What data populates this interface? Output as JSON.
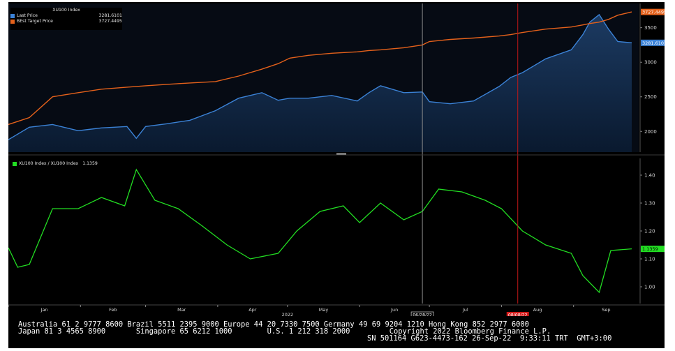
{
  "colors": {
    "background": "#000000",
    "panel_top": "#0b1626",
    "panel_bottom": "#000000",
    "last_price": "#3b82d6",
    "best_target": "#e4611b",
    "ratio": "#22dd22",
    "cursor_line": "#8a8a8a",
    "marker_line": "#c01818",
    "axis_text": "#d8d8d8"
  },
  "top_legend": {
    "title": "XU100 Index",
    "items": [
      {
        "label": "Last Price",
        "value": "3281.6101",
        "color": "#3b82d6"
      },
      {
        "label": "BEst Target Price",
        "value": "3727.4495",
        "color": "#e4611b"
      }
    ]
  },
  "bottom_legend": {
    "label": "XU100 Index / XU100 Index",
    "value": "1.1359",
    "color": "#22dd22"
  },
  "top_axis": {
    "ticks": [
      "3500",
      "3000",
      "2500",
      "2000"
    ]
  },
  "bottom_axis": {
    "ticks": [
      "1.40",
      "1.30",
      "1.20",
      "1.10",
      "1.00"
    ]
  },
  "top_badges": {
    "target": "3727.4495",
    "last": "3281.6101"
  },
  "bottom_badge": "1.1359",
  "x_axis": {
    "months": [
      "Jan",
      "Feb",
      "Mar",
      "Apr",
      "May",
      "Jun",
      "Jul",
      "Aug",
      "Sep"
    ],
    "year": "2022",
    "cursor_date": "06/28/22",
    "marker_date": "08/08/22"
  },
  "footer": {
    "line1": "Australia 61 2 9777 8600 Brazil 5511 2395 9000 Europe 44 20 7330 7500 Germany 49 69 9204 1210 Hong Kong 852 2977 6000",
    "line2": "Japan 81 3 4565 8900       Singapore 65 6212 1000        U.S. 1 212 318 2000         Copyright 2022 Bloomberg Finance L.P.",
    "line3": "SN 501164 G623-4473-162 26-Sep-22  9:33:11 TRT  GMT+3:00"
  },
  "chart_data": [
    {
      "type": "area",
      "panel": "top",
      "title": "XU100 Index",
      "ylim": [
        1700,
        3850
      ],
      "y_ticks": [
        3500,
        3000,
        2500,
        2000
      ],
      "x": [
        "2022-01-01",
        "2022-01-10",
        "2022-01-20",
        "2022-01-31",
        "2022-02-10",
        "2022-02-21",
        "2022-02-25",
        "2022-03-01",
        "2022-03-10",
        "2022-03-20",
        "2022-03-31",
        "2022-04-10",
        "2022-04-20",
        "2022-04-27",
        "2022-05-02",
        "2022-05-10",
        "2022-05-20",
        "2022-05-31",
        "2022-06-05",
        "2022-06-10",
        "2022-06-20",
        "2022-06-28",
        "2022-07-01",
        "2022-07-10",
        "2022-07-20",
        "2022-07-31",
        "2022-08-05",
        "2022-08-10",
        "2022-08-20",
        "2022-08-31",
        "2022-09-05",
        "2022-09-08",
        "2022-09-12",
        "2022-09-16",
        "2022-09-20",
        "2022-09-26"
      ],
      "series": [
        {
          "name": "Last Price",
          "values": [
            1880,
            2060,
            2100,
            2010,
            2050,
            2070,
            1900,
            2070,
            2110,
            2160,
            2300,
            2480,
            2560,
            2450,
            2480,
            2480,
            2520,
            2440,
            2560,
            2660,
            2560,
            2570,
            2430,
            2400,
            2440,
            2650,
            2780,
            2850,
            3050,
            3180,
            3400,
            3580,
            3690,
            3480,
            3300,
            3281.6
          ]
        },
        {
          "name": "BEst Target Price",
          "values": [
            2100,
            2200,
            2500,
            2560,
            2610,
            2640,
            2650,
            2660,
            2680,
            2700,
            2720,
            2800,
            2900,
            2980,
            3060,
            3100,
            3130,
            3150,
            3170,
            3180,
            3210,
            3250,
            3300,
            3330,
            3350,
            3380,
            3400,
            3430,
            3480,
            3510,
            3540,
            3560,
            3580,
            3620,
            3680,
            3727.45
          ]
        }
      ]
    },
    {
      "type": "line",
      "panel": "bottom",
      "ylim": [
        0.94,
        1.46
      ],
      "y_ticks": [
        1.4,
        1.3,
        1.2,
        1.1,
        1.0
      ],
      "x": [
        "2022-01-01",
        "2022-01-05",
        "2022-01-10",
        "2022-01-20",
        "2022-01-31",
        "2022-02-10",
        "2022-02-20",
        "2022-02-25",
        "2022-03-05",
        "2022-03-15",
        "2022-03-25",
        "2022-04-05",
        "2022-04-15",
        "2022-04-27",
        "2022-05-05",
        "2022-05-15",
        "2022-05-25",
        "2022-06-01",
        "2022-06-10",
        "2022-06-20",
        "2022-06-28",
        "2022-07-05",
        "2022-07-15",
        "2022-07-25",
        "2022-08-01",
        "2022-08-10",
        "2022-08-20",
        "2022-08-31",
        "2022-09-05",
        "2022-09-12",
        "2022-09-17",
        "2022-09-26"
      ],
      "series": [
        {
          "name": "XU100 Index / XU100 Index",
          "values": [
            1.14,
            1.07,
            1.08,
            1.28,
            1.28,
            1.32,
            1.29,
            1.42,
            1.31,
            1.28,
            1.22,
            1.15,
            1.1,
            1.12,
            1.2,
            1.27,
            1.29,
            1.23,
            1.3,
            1.24,
            1.27,
            1.35,
            1.34,
            1.31,
            1.28,
            1.2,
            1.15,
            1.12,
            1.04,
            0.98,
            1.13,
            1.1359
          ]
        }
      ]
    }
  ]
}
